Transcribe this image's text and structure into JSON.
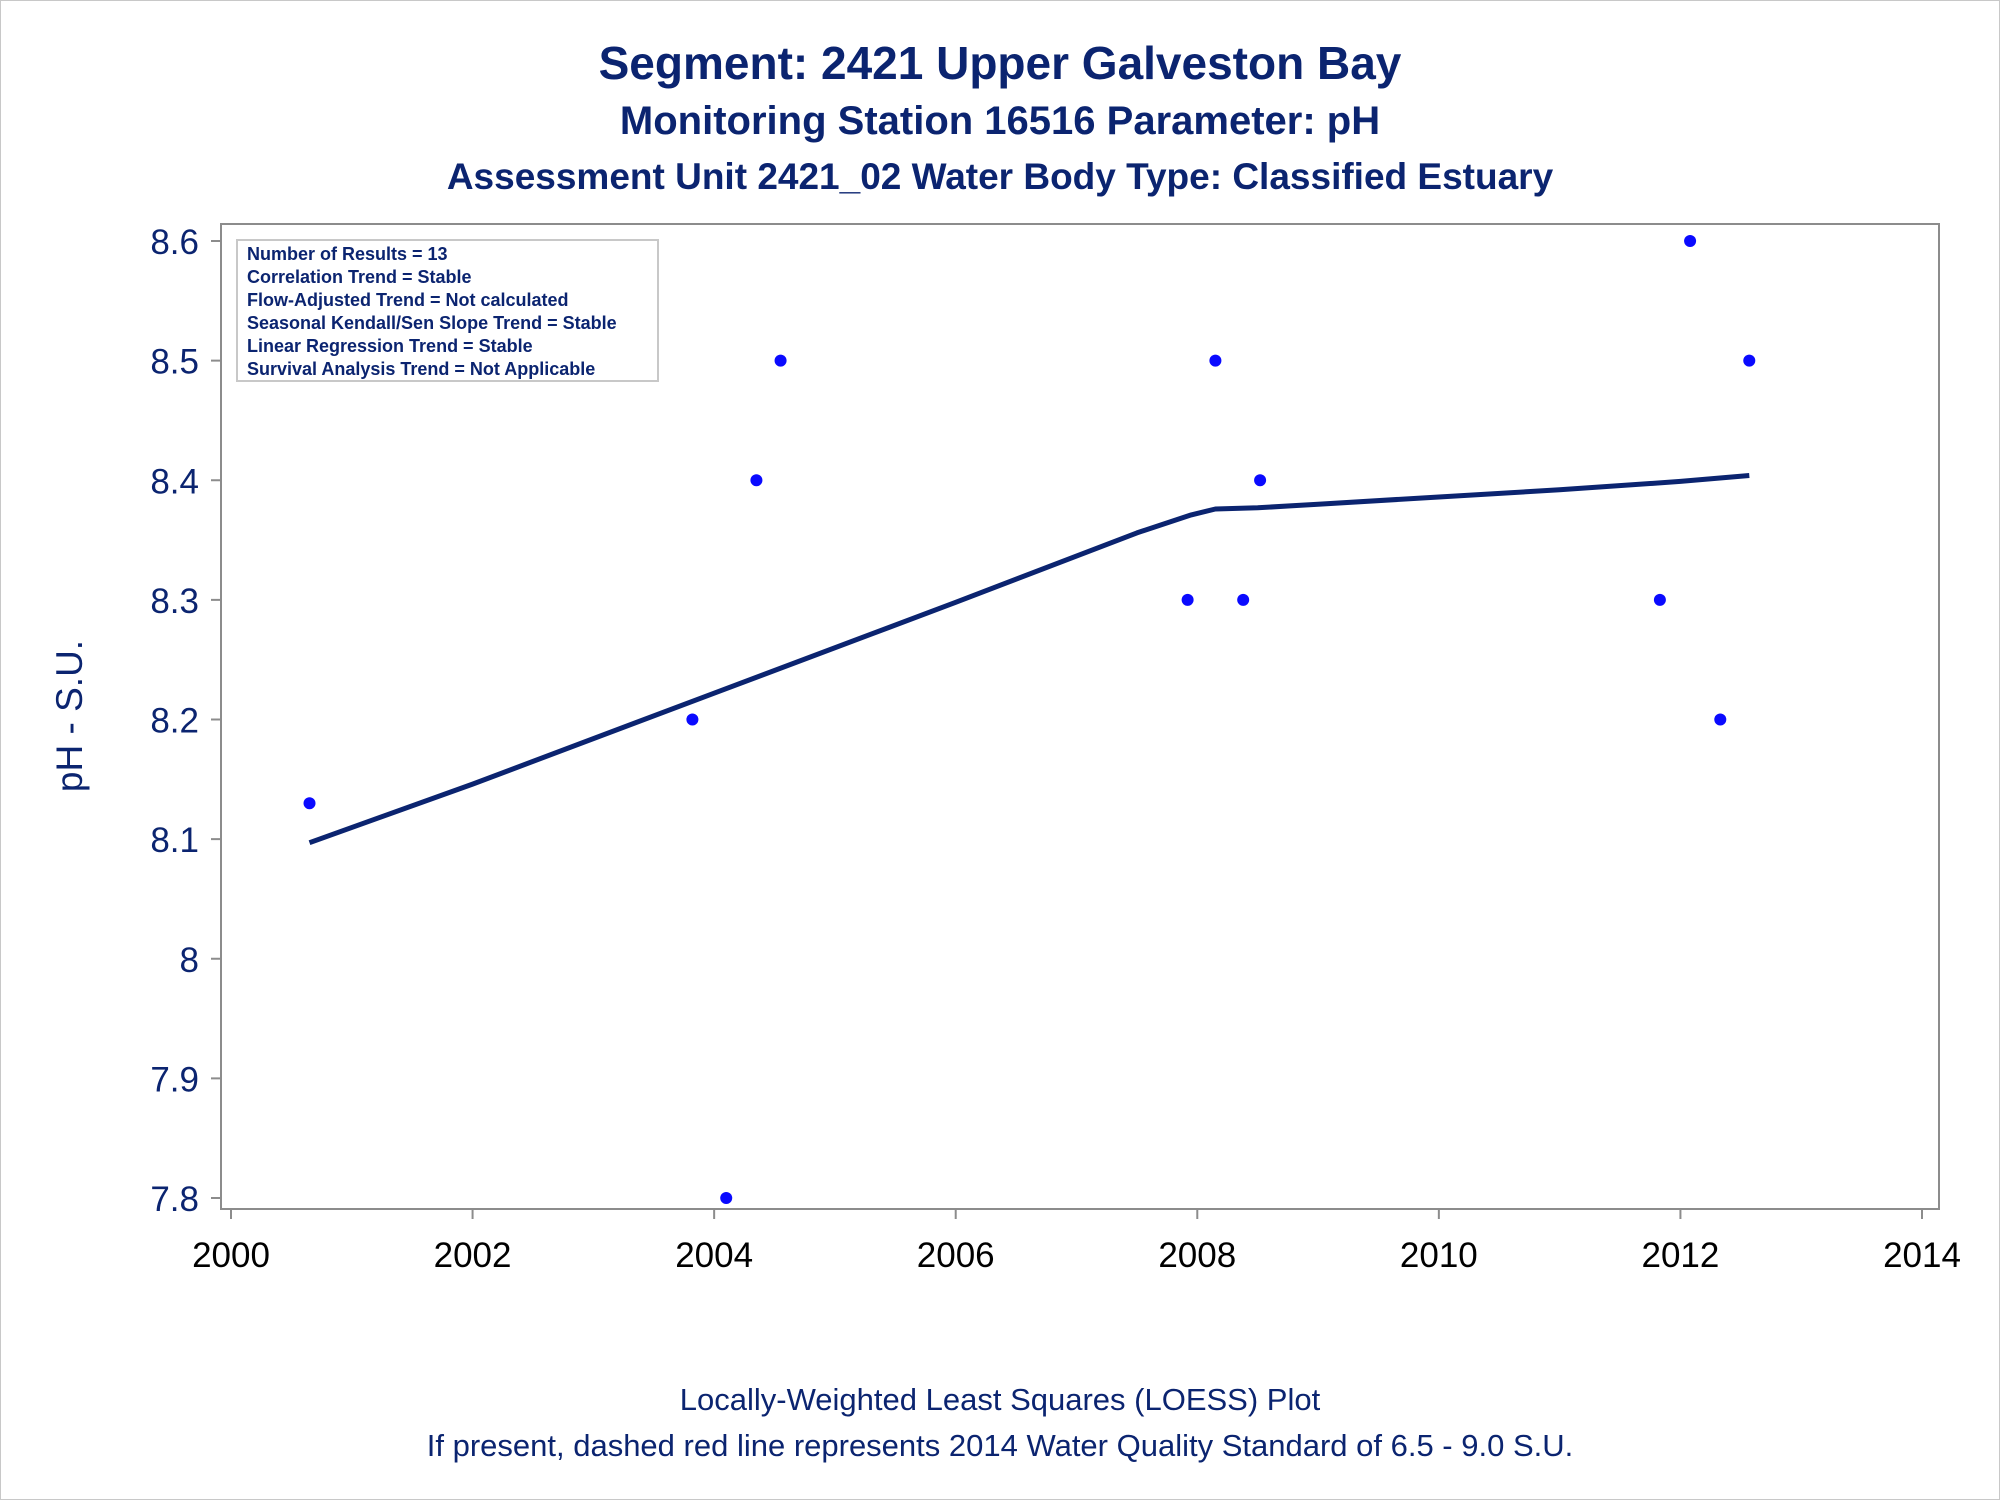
{
  "titles": {
    "line1": "Segment: 2421  Upper Galveston Bay",
    "line2": "Monitoring Station 16516 Parameter: pH",
    "line3": "Assessment Unit 2421_02   Water Body Type: Classified Estuary"
  },
  "footnotes": {
    "line1": "Locally-Weighted Least Squares (LOESS) Plot",
    "line2": "If present, dashed red line represents 2014 Water Quality Standard of 6.5 - 9.0 S.U."
  },
  "colors": {
    "text": "#0b2470",
    "points": "#0a0aff",
    "trend_line": "#0b2470",
    "axis": "#8c8c8c"
  },
  "chart_data": {
    "type": "scatter",
    "title": "Segment: 2421  Upper Galveston Bay",
    "ylabel": "pH - S.U.",
    "xlabel": "",
    "xlim": [
      2000,
      2014
    ],
    "ylim": [
      7.8,
      8.6
    ],
    "xticks": [
      "2000",
      "2002",
      "2004",
      "2006",
      "2008",
      "2010",
      "2012",
      "2014"
    ],
    "yticks": [
      "7.8",
      "7.9",
      "8",
      "8.1",
      "8.2",
      "8.3",
      "8.4",
      "8.5",
      "8.6"
    ],
    "grid": false,
    "legend": {
      "position": "top-left",
      "entries": [
        "Number of Results = 13",
        "Correlation Trend = Stable",
        "Flow-Adjusted Trend = Not calculated",
        "Seasonal Kendall/Sen Slope Trend = Stable",
        "Linear Regression Trend = Stable",
        "Survival Analysis Trend = Not Applicable"
      ]
    },
    "series": [
      {
        "type": "scatter",
        "x": [
          2000.65,
          2003.82,
          2004.1,
          2004.35,
          2004.55,
          2007.92,
          2008.15,
          2008.38,
          2008.52,
          2011.83,
          2012.08,
          2012.33,
          2012.57
        ],
        "y": [
          8.13,
          8.2,
          7.8,
          8.4,
          8.5,
          8.3,
          8.5,
          8.3,
          8.4,
          8.3,
          8.6,
          8.2,
          8.5
        ]
      },
      {
        "type": "line",
        "x": [
          2000.65,
          2002.0,
          2004.0,
          2006.0,
          2007.5,
          2007.95,
          2008.15,
          2008.5,
          2009.0,
          2010.0,
          2011.0,
          2012.0,
          2012.57
        ],
        "y": [
          8.097,
          8.146,
          8.222,
          8.298,
          8.356,
          8.371,
          8.376,
          8.377,
          8.38,
          8.386,
          8.392,
          8.399,
          8.404
        ]
      }
    ]
  }
}
